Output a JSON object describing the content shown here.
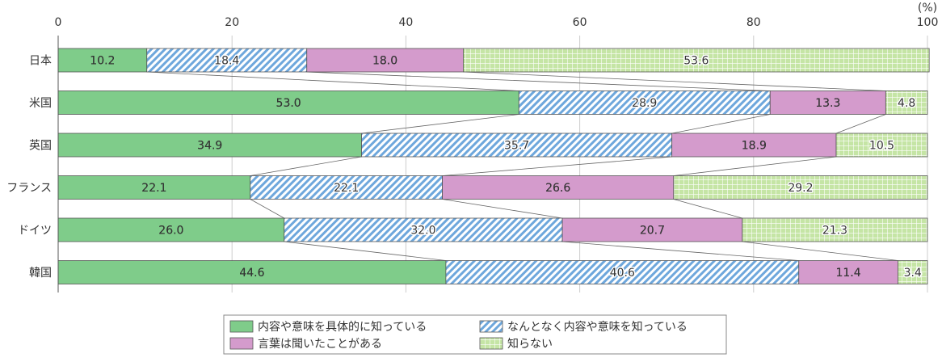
{
  "chart_data": {
    "type": "bar",
    "orientation": "horizontal",
    "stacked": true,
    "unit_label": "(%)",
    "xlim": [
      0,
      100
    ],
    "x_ticks": [
      0,
      20,
      40,
      60,
      80,
      100
    ],
    "grid": true,
    "connector_lines": true,
    "categories": [
      "日本",
      "米国",
      "英国",
      "フランス",
      "ドイツ",
      "韓国"
    ],
    "series": [
      {
        "name": "内容や意味を具体的に知っている",
        "color": "#7fcc8a",
        "pattern": "solid",
        "values": [
          10.2,
          53.0,
          34.9,
          22.1,
          26.0,
          44.6
        ]
      },
      {
        "name": "なんとなく内容や意味を知っている",
        "color": "#6ea7dc",
        "pattern": "diagonal-hatch",
        "values": [
          18.4,
          28.9,
          35.7,
          22.1,
          32.0,
          40.6
        ]
      },
      {
        "name": "言葉は聞いたことがある",
        "color": "#d49bcc",
        "pattern": "solid",
        "values": [
          18.0,
          13.3,
          18.9,
          26.6,
          20.7,
          11.4
        ]
      },
      {
        "name": "知らない",
        "color": "#c5e5a5",
        "pattern": "grid",
        "values": [
          53.6,
          4.8,
          10.5,
          29.2,
          21.3,
          3.4
        ]
      }
    ],
    "legend_position": "bottom-center"
  }
}
